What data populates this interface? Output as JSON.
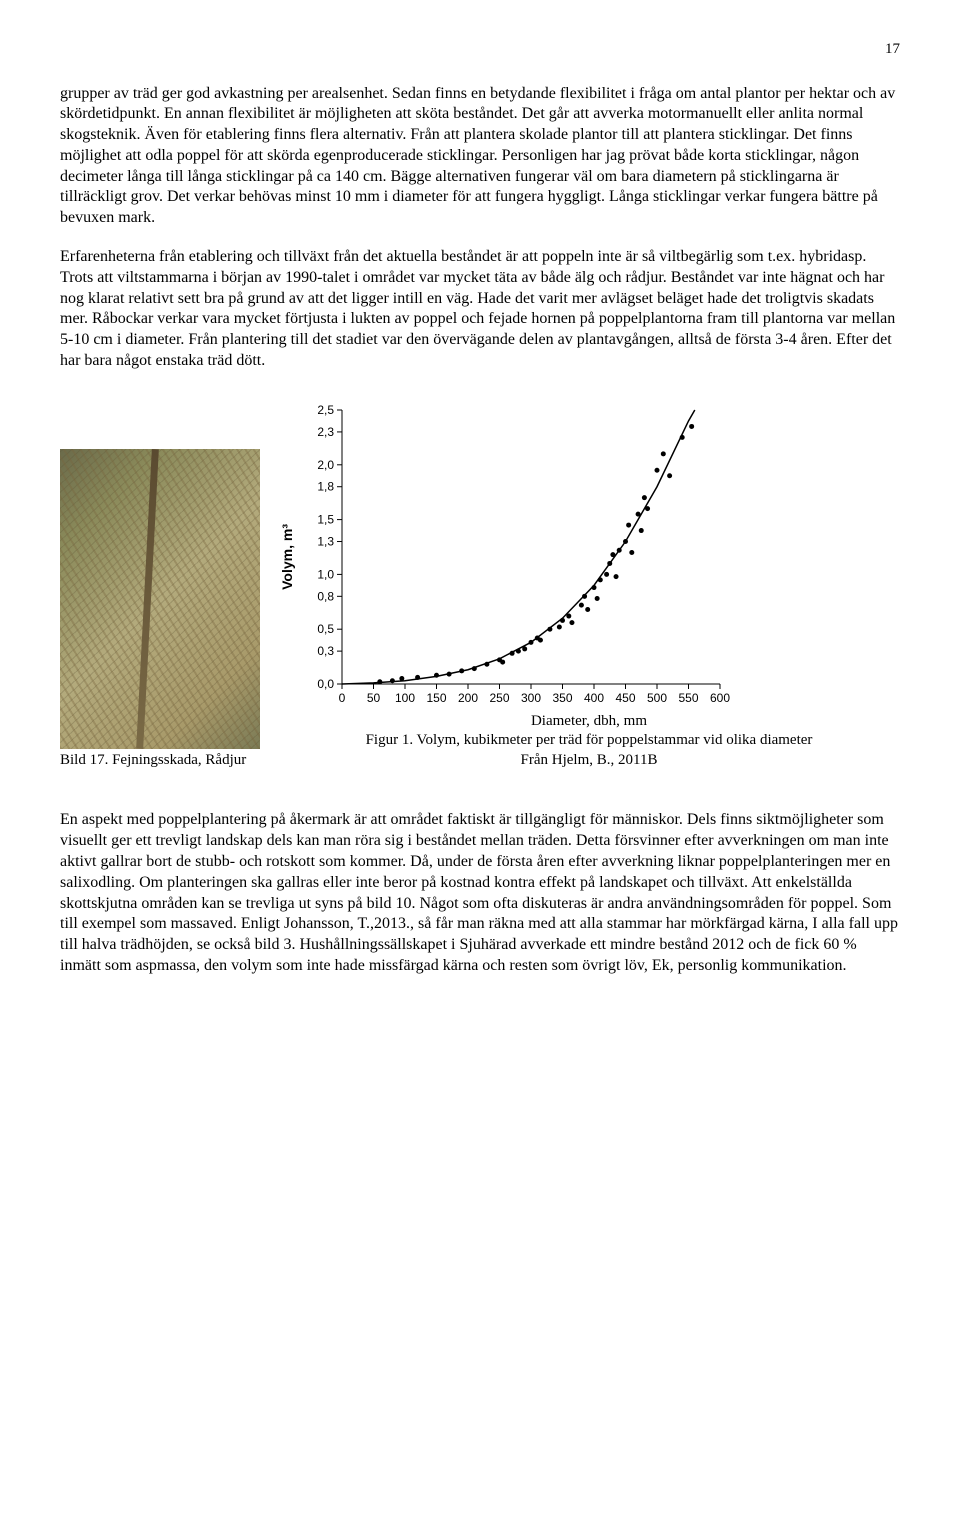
{
  "page_number": "17",
  "paragraphs": {
    "p1": "grupper av träd ger god avkastning per arealsenhet. Sedan finns en betydande flexibilitet i fråga om antal plantor per hektar och av skördetidpunkt. En annan flexibilitet är möjligheten att sköta beståndet. Det går att avverka motormanuellt eller anlita normal skogsteknik. Även för etablering finns flera alternativ. Från att plantera skolade plantor till att plantera sticklingar. Det finns möjlighet att odla poppel för att skörda egenproducerade sticklingar. Personligen har jag prövat både korta sticklingar, någon decimeter långa till långa sticklingar på ca 140 cm. Bägge alternativen fungerar väl om bara diametern på sticklingarna är tillräckligt grov. Det verkar behövas minst 10 mm i diameter för att fungera hyggligt. Långa sticklingar verkar fungera bättre på bevuxen mark.",
    "p2": "Erfarenheterna från etablering och tillväxt från det aktuella beståndet är att poppeln inte är så viltbegärlig som t.ex. hybridasp. Trots att viltstammarna i början av 1990-talet i området var mycket täta av både älg och rådjur. Beståndet var inte hägnat och har nog klarat relativt sett bra på grund av att det ligger intill en väg. Hade det varit mer avlägset beläget hade det troligtvis skadats mer. Råbockar verkar vara mycket förtjusta i lukten av poppel och fejade hornen på poppelplantorna fram till plantorna var mellan 5-10 cm i diameter. Från plantering till det stadiet var den övervägande delen av plantavgången, alltså de första 3-4 åren. Efter det har bara något enstaka träd dött.",
    "p3": "En aspekt med poppelplantering på åkermark är att området faktiskt är tillgängligt för människor. Dels finns siktmöjligheter som visuellt ger ett trevligt landskap dels kan man röra sig i beståndet mellan träden. Detta försvinner efter avverkningen om man inte aktivt gallrar bort de stubb- och rotskott som kommer. Då, under de första åren efter avverkning liknar poppelplanteringen mer en salixodling. Om planteringen ska gallras eller inte beror på kostnad kontra effekt på landskapet och tillväxt. Att enkelställda skottskjutna områden kan se trevliga ut syns på bild 10. Något som ofta diskuteras är andra användningsområden för poppel. Som till exempel som massaved. Enligt Johansson, T.,2013., så får man räkna med att alla stammar har mörkfärgad kärna, I alla fall upp till halva trädhöjden, se också bild 3. Hushållningssällskapet i Sjuhärad avverkade ett mindre bestånd 2012 och de fick 60 % inmätt som aspmassa, den volym som inte hade missfärgad kärna och resten som övrigt löv, Ek, personlig kommunikation."
  },
  "photo_caption": "Bild 17. Fejningsskada, Rådjur",
  "chart": {
    "type": "scatter-with-curve",
    "ylabel": "Volym, m³",
    "xlabel": "Diameter, dbh, mm",
    "caption": "Figur 1. Volym, kubikmeter per träd för poppelstammar vid olika diameter",
    "subcaption": "Från Hjelm, B., 2011B",
    "xlim": [
      0,
      600
    ],
    "ylim": [
      0,
      2.5
    ],
    "xticks": [
      0,
      50,
      100,
      150,
      200,
      250,
      300,
      350,
      400,
      450,
      500,
      550,
      600
    ],
    "yticks": [
      0.0,
      0.3,
      0.5,
      0.8,
      1.0,
      1.3,
      1.5,
      1.8,
      2.0,
      2.3,
      2.5
    ],
    "ytick_labels": [
      "0,0",
      "0,3",
      "0,5",
      "0,8",
      "1,0",
      "1,3",
      "1,5",
      "1,8",
      "2,0",
      "2,3",
      "2,5"
    ],
    "point_color": "#000000",
    "curve_color": "#000000",
    "tick_color": "#000000",
    "background": "#ffffff",
    "marker_radius": 2.5,
    "curve_width": 1.5,
    "axis_fontsize": 12,
    "points": [
      [
        60,
        0.02
      ],
      [
        80,
        0.03
      ],
      [
        95,
        0.05
      ],
      [
        120,
        0.06
      ],
      [
        150,
        0.08
      ],
      [
        170,
        0.09
      ],
      [
        190,
        0.12
      ],
      [
        210,
        0.14
      ],
      [
        230,
        0.18
      ],
      [
        250,
        0.22
      ],
      [
        255,
        0.2
      ],
      [
        270,
        0.28
      ],
      [
        280,
        0.3
      ],
      [
        290,
        0.32
      ],
      [
        300,
        0.38
      ],
      [
        310,
        0.42
      ],
      [
        315,
        0.4
      ],
      [
        330,
        0.5
      ],
      [
        345,
        0.52
      ],
      [
        350,
        0.58
      ],
      [
        360,
        0.62
      ],
      [
        365,
        0.56
      ],
      [
        380,
        0.72
      ],
      [
        385,
        0.8
      ],
      [
        390,
        0.68
      ],
      [
        400,
        0.88
      ],
      [
        405,
        0.78
      ],
      [
        410,
        0.95
      ],
      [
        420,
        1.0
      ],
      [
        425,
        1.1
      ],
      [
        430,
        1.18
      ],
      [
        435,
        0.98
      ],
      [
        440,
        1.22
      ],
      [
        450,
        1.3
      ],
      [
        455,
        1.45
      ],
      [
        460,
        1.2
      ],
      [
        470,
        1.55
      ],
      [
        475,
        1.4
      ],
      [
        480,
        1.7
      ],
      [
        485,
        1.6
      ],
      [
        500,
        1.95
      ],
      [
        510,
        2.1
      ],
      [
        520,
        1.9
      ],
      [
        540,
        2.25
      ],
      [
        555,
        2.35
      ]
    ],
    "curve": [
      [
        0,
        0.0
      ],
      [
        50,
        0.01
      ],
      [
        100,
        0.03
      ],
      [
        150,
        0.07
      ],
      [
        200,
        0.13
      ],
      [
        250,
        0.23
      ],
      [
        300,
        0.38
      ],
      [
        350,
        0.6
      ],
      [
        400,
        0.9
      ],
      [
        450,
        1.3
      ],
      [
        500,
        1.8
      ],
      [
        550,
        2.4
      ],
      [
        560,
        2.5
      ]
    ]
  }
}
